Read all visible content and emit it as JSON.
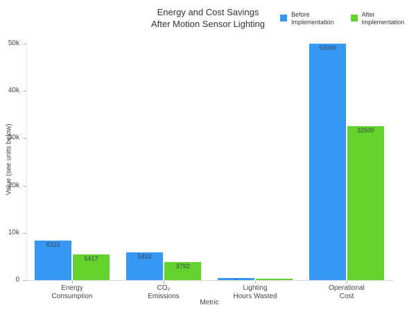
{
  "title": {
    "line1": "Energy and Cost Savings",
    "line2": "After Motion Sensor Lighting"
  },
  "legend": {
    "items": [
      {
        "lines": [
          "Before",
          "Implementation"
        ],
        "series": "Before Implementation"
      },
      {
        "lines": [
          "After",
          "Implementation"
        ],
        "series": "After Implementation"
      }
    ]
  },
  "chart_data": {
    "type": "bar",
    "title": "Energy and Cost Savings After Motion Sensor Lighting",
    "categories": [
      "Energy Consumption",
      "CO₂ Emissions",
      "Lighting Hours Wasted",
      "Operational Cost"
    ],
    "categories_lines": [
      [
        "Energy",
        "Consumption"
      ],
      [
        "CO₂",
        "Emissions"
      ],
      [
        "Lighting",
        "Hours Wasted"
      ],
      [
        "Operational",
        "Cost"
      ]
    ],
    "series": [
      {
        "name": "Before Implementation",
        "color": "#3598f5",
        "values": [
          8333,
          5833,
          417,
          50000
        ]
      },
      {
        "name": "After Implementation",
        "color": "#63d22c",
        "values": [
          5417,
          3792,
          271,
          32500
        ]
      }
    ],
    "bar_labels": [
      [
        "8333",
        "5833",
        "417",
        "50000"
      ],
      [
        "5417",
        "3792",
        "271",
        "32500"
      ]
    ],
    "xlabel": "Metric",
    "ylabel": "Value (see units below)",
    "ylim": [
      0,
      52000
    ],
    "yticks": [
      {
        "value": 0,
        "label": "0"
      },
      {
        "value": 10000,
        "label": "10k"
      },
      {
        "value": 20000,
        "label": "20k"
      },
      {
        "value": 30000,
        "label": "30k"
      },
      {
        "value": 40000,
        "label": "40k"
      },
      {
        "value": 50000,
        "label": "50k"
      }
    ],
    "grid": false,
    "legend_position": "top-right",
    "background_color": "#ffffff",
    "axis_color": "#444444",
    "axis_line_color": "#d9d9d9"
  }
}
